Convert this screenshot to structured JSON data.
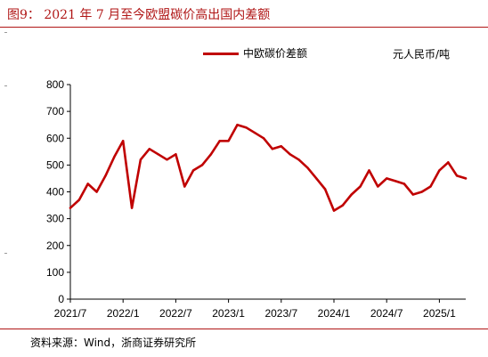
{
  "title": "图9： 2021 年 7 月至今欧盟碳价高出国内差额",
  "unit": "元人民币/吨",
  "source": "资料来源：Wind，浙商证券研究所",
  "colors": {
    "accent": "#b01616",
    "series": "#c00000"
  },
  "chart_data": {
    "type": "line",
    "title": "",
    "xlabel": "",
    "ylabel": "元人民币/吨",
    "ylim": [
      0,
      800
    ],
    "yticks": [
      0,
      100,
      200,
      300,
      400,
      500,
      600,
      700,
      800
    ],
    "x_tick_labels": [
      "2021/7",
      "2022/1",
      "2022/7",
      "2023/1",
      "2023/7",
      "2024/1",
      "2024/7",
      "2025/1"
    ],
    "grid": false,
    "legend": "top",
    "series": [
      {
        "name": "中欧碳价差额",
        "x": [
          "2021/7",
          "2021/8",
          "2021/9",
          "2021/10",
          "2021/11",
          "2021/12",
          "2022/1",
          "2022/2",
          "2022/3",
          "2022/4",
          "2022/5",
          "2022/6",
          "2022/7",
          "2022/8",
          "2022/9",
          "2022/10",
          "2022/11",
          "2022/12",
          "2023/1",
          "2023/2",
          "2023/3",
          "2023/4",
          "2023/5",
          "2023/6",
          "2023/7",
          "2023/8",
          "2023/9",
          "2023/10",
          "2023/11",
          "2023/12",
          "2024/1",
          "2024/2",
          "2024/3",
          "2024/4",
          "2024/5",
          "2024/6",
          "2024/7",
          "2024/8",
          "2024/9",
          "2024/10",
          "2024/11",
          "2024/12",
          "2025/1",
          "2025/2",
          "2025/3",
          "2025/4"
        ],
        "values": [
          340,
          370,
          430,
          400,
          460,
          530,
          590,
          340,
          520,
          560,
          540,
          520,
          540,
          420,
          480,
          500,
          540,
          590,
          590,
          650,
          640,
          620,
          600,
          560,
          570,
          540,
          520,
          490,
          450,
          410,
          330,
          350,
          390,
          420,
          480,
          420,
          450,
          440,
          430,
          390,
          400,
          420,
          480,
          510,
          460,
          450
        ]
      }
    ]
  }
}
